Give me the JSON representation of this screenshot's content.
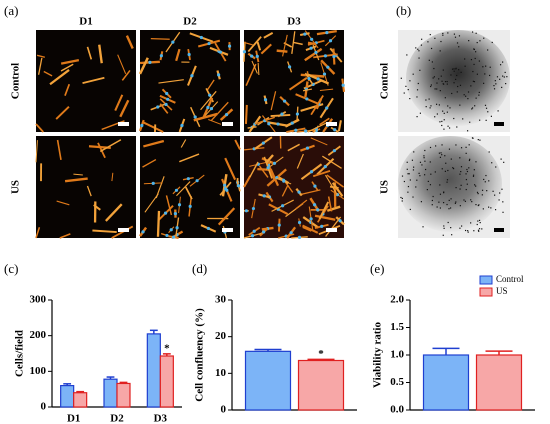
{
  "panels": {
    "a": {
      "label": "(a)",
      "columns": [
        "D1",
        "D2",
        "D3"
      ],
      "rows": [
        "Control",
        "US"
      ]
    },
    "b": {
      "label": "(b)",
      "rows": [
        "Control",
        "US"
      ]
    }
  },
  "chart_data": [
    {
      "type": "bar",
      "panel_label": "(c)",
      "ylabel": "Cells/field",
      "categories": [
        "D1",
        "D2",
        "D3"
      ],
      "series": [
        {
          "name": "Control",
          "color": "#7cb4f7",
          "edge": "#1f3fd0",
          "values": [
            60,
            78,
            205
          ],
          "errors": [
            5,
            6,
            10
          ],
          "significance": [
            null,
            null,
            null
          ]
        },
        {
          "name": "US",
          "color": "#f7a7a7",
          "edge": "#e02020",
          "values": [
            40,
            66,
            143
          ],
          "errors": [
            3,
            3,
            6
          ],
          "significance": [
            null,
            null,
            "*"
          ]
        }
      ],
      "ylim": [
        0,
        300
      ],
      "yticks": [
        0,
        100,
        200,
        300
      ]
    },
    {
      "type": "bar",
      "panel_label": "(d)",
      "ylabel": "Cell confluency (%)",
      "categories": [
        null
      ],
      "series": [
        {
          "name": "Control",
          "color": "#7cb4f7",
          "edge": "#1f3fd0",
          "values": [
            16
          ],
          "errors": [
            0.5
          ],
          "significance": [
            null
          ]
        },
        {
          "name": "US",
          "color": "#f7a7a7",
          "edge": "#e02020",
          "values": [
            13.5
          ],
          "errors": [
            0.3
          ],
          "significance": [
            "*"
          ]
        }
      ],
      "ylim": [
        0,
        30
      ],
      "yticks": [
        0,
        10,
        20,
        30
      ]
    },
    {
      "type": "bar",
      "panel_label": "(e)",
      "ylabel": "Viability ratio",
      "categories": [
        null
      ],
      "series": [
        {
          "name": "Control",
          "color": "#7cb4f7",
          "edge": "#1f3fd0",
          "values": [
            1.0
          ],
          "errors": [
            0.12
          ],
          "significance": [
            null
          ]
        },
        {
          "name": "US",
          "color": "#f7a7a7",
          "edge": "#e02020",
          "values": [
            1.0
          ],
          "errors": [
            0.07
          ],
          "significance": [
            null
          ]
        }
      ],
      "ylim": [
        0,
        2
      ],
      "yticks": [
        {
          "value": 0,
          "label": "0.0"
        },
        {
          "value": 0.5,
          "label": "0.5"
        },
        {
          "value": 1,
          "label": "1.0"
        },
        {
          "value": 1.5,
          "label": "1.5"
        },
        {
          "value": 2,
          "label": "2.0"
        }
      ],
      "legend": "top-right"
    }
  ]
}
